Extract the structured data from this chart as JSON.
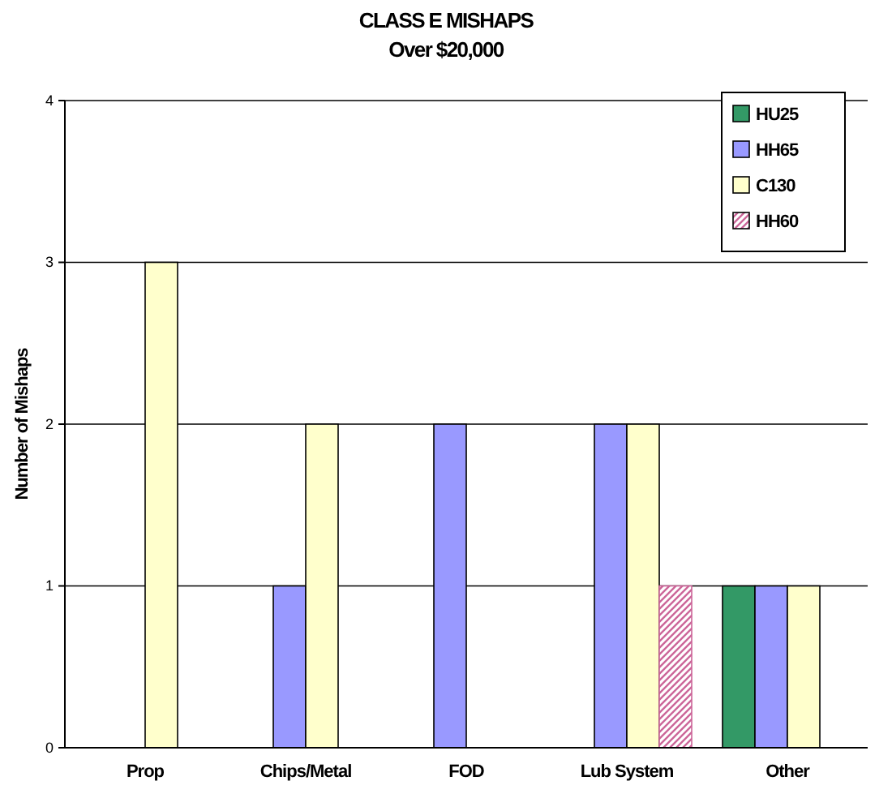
{
  "chart_data": {
    "type": "bar",
    "title": "CLASS E MISHAPS",
    "subtitle": "Over $20,000",
    "ylabel": "Number of Mishaps",
    "categories": [
      "Prop",
      "Chips/Metal",
      "FOD",
      "Lub System",
      "Other"
    ],
    "series": [
      {
        "name": "HU25",
        "color": "#339966",
        "values": [
          0,
          0,
          0,
          0,
          1
        ]
      },
      {
        "name": "HH65",
        "color": "#9999ff",
        "values": [
          0,
          1,
          2,
          2,
          1
        ]
      },
      {
        "name": "C130",
        "color": "#ffffcc",
        "values": [
          3,
          2,
          0,
          2,
          1
        ]
      },
      {
        "name": "HH60",
        "color": "#cc6699",
        "values": [
          0,
          0,
          0,
          1,
          0
        ]
      }
    ],
    "ylim": [
      0,
      4
    ],
    "yticks": [
      0,
      1,
      2,
      3,
      4
    ],
    "grid": "y",
    "legend": "top right"
  }
}
